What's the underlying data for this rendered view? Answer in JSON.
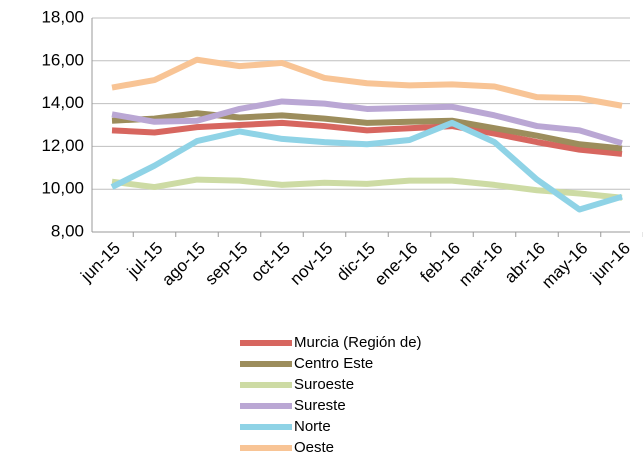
{
  "chart_data": {
    "type": "line",
    "categories": [
      "jun-15",
      "jul-15",
      "ago-15",
      "sep-15",
      "oct-15",
      "nov-15",
      "dic-15",
      "ene-16",
      "feb-16",
      "mar-16",
      "abr-16",
      "may-16",
      "jun-16"
    ],
    "series": [
      {
        "name": "Murcia (Región de)",
        "color": "#d7665f",
        "values": [
          12.75,
          12.65,
          12.9,
          13.0,
          13.1,
          12.95,
          12.75,
          12.85,
          12.95,
          12.6,
          12.2,
          11.85,
          11.65
        ]
      },
      {
        "name": "Centro Este",
        "color": "#9c8d5c",
        "values": [
          13.2,
          13.3,
          13.55,
          13.35,
          13.45,
          13.3,
          13.1,
          13.15,
          13.2,
          12.85,
          12.5,
          12.1,
          11.9
        ]
      },
      {
        "name": "Suroeste",
        "color": "#cddba4",
        "values": [
          10.35,
          10.1,
          10.45,
          10.4,
          10.2,
          10.3,
          10.25,
          10.4,
          10.4,
          10.2,
          9.95,
          9.8,
          9.6
        ]
      },
      {
        "name": "Sureste",
        "color": "#baa7d4",
        "values": [
          13.5,
          13.15,
          13.2,
          13.75,
          14.1,
          14.0,
          13.75,
          13.8,
          13.85,
          13.45,
          12.95,
          12.75,
          12.15
        ]
      },
      {
        "name": "Norte",
        "color": "#8fd3e6",
        "values": [
          10.1,
          11.1,
          12.25,
          12.7,
          12.35,
          12.2,
          12.1,
          12.3,
          13.1,
          12.2,
          10.45,
          9.05,
          9.65
        ]
      },
      {
        "name": "Oeste",
        "color": "#f8c495",
        "values": [
          14.75,
          15.1,
          16.05,
          15.75,
          15.9,
          15.2,
          14.95,
          14.85,
          14.9,
          14.8,
          14.3,
          14.25,
          13.9
        ]
      }
    ],
    "ylim": [
      8,
      18
    ],
    "yticks": [
      {
        "value": 8,
        "label": "8,00"
      },
      {
        "value": 10,
        "label": "10,00"
      },
      {
        "value": 12,
        "label": "12,00"
      },
      {
        "value": 14,
        "label": "14,00"
      },
      {
        "value": 16,
        "label": "16,00"
      },
      {
        "value": 18,
        "label": "18,00"
      }
    ],
    "grid": true
  }
}
